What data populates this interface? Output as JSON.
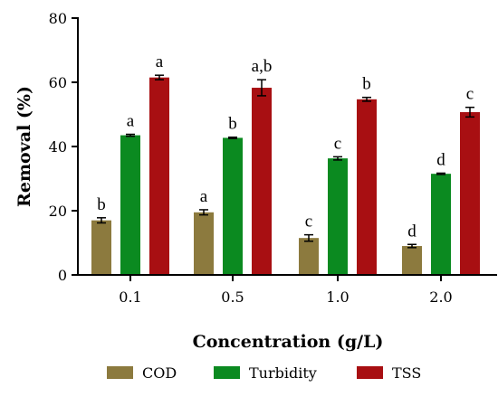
{
  "chart_data": {
    "type": "bar",
    "categories": [
      "0.1",
      "0.5",
      "1.0",
      "2.0"
    ],
    "xlabel": "Concentration (g/L)",
    "ylabel": "Removal (%)",
    "ylim": [
      0,
      80
    ],
    "yticks": [
      "0",
      "20",
      "40",
      "60",
      "80"
    ],
    "grid": false,
    "legend_position": "bottom",
    "series": [
      {
        "name": "COD",
        "color": "#8c7a3e",
        "values": [
          17.0,
          19.5,
          11.5,
          9.0
        ],
        "errors": [
          0.8,
          0.8,
          1.0,
          0.5
        ],
        "letters": [
          "b",
          "a",
          "c",
          "d"
        ]
      },
      {
        "name": "Turbidity",
        "color": "#0b8a20",
        "values": [
          43.5,
          42.7,
          36.3,
          31.5
        ],
        "errors": [
          0.3,
          0.2,
          0.5,
          0.2
        ],
        "letters": [
          "a",
          "b",
          "c",
          "d"
        ]
      },
      {
        "name": "TSS",
        "color": "#a80f12",
        "values": [
          61.5,
          58.3,
          54.7,
          50.7
        ],
        "errors": [
          0.7,
          2.5,
          0.6,
          1.5
        ],
        "letters": [
          "a",
          "a,b",
          "b",
          "c"
        ]
      }
    ]
  }
}
